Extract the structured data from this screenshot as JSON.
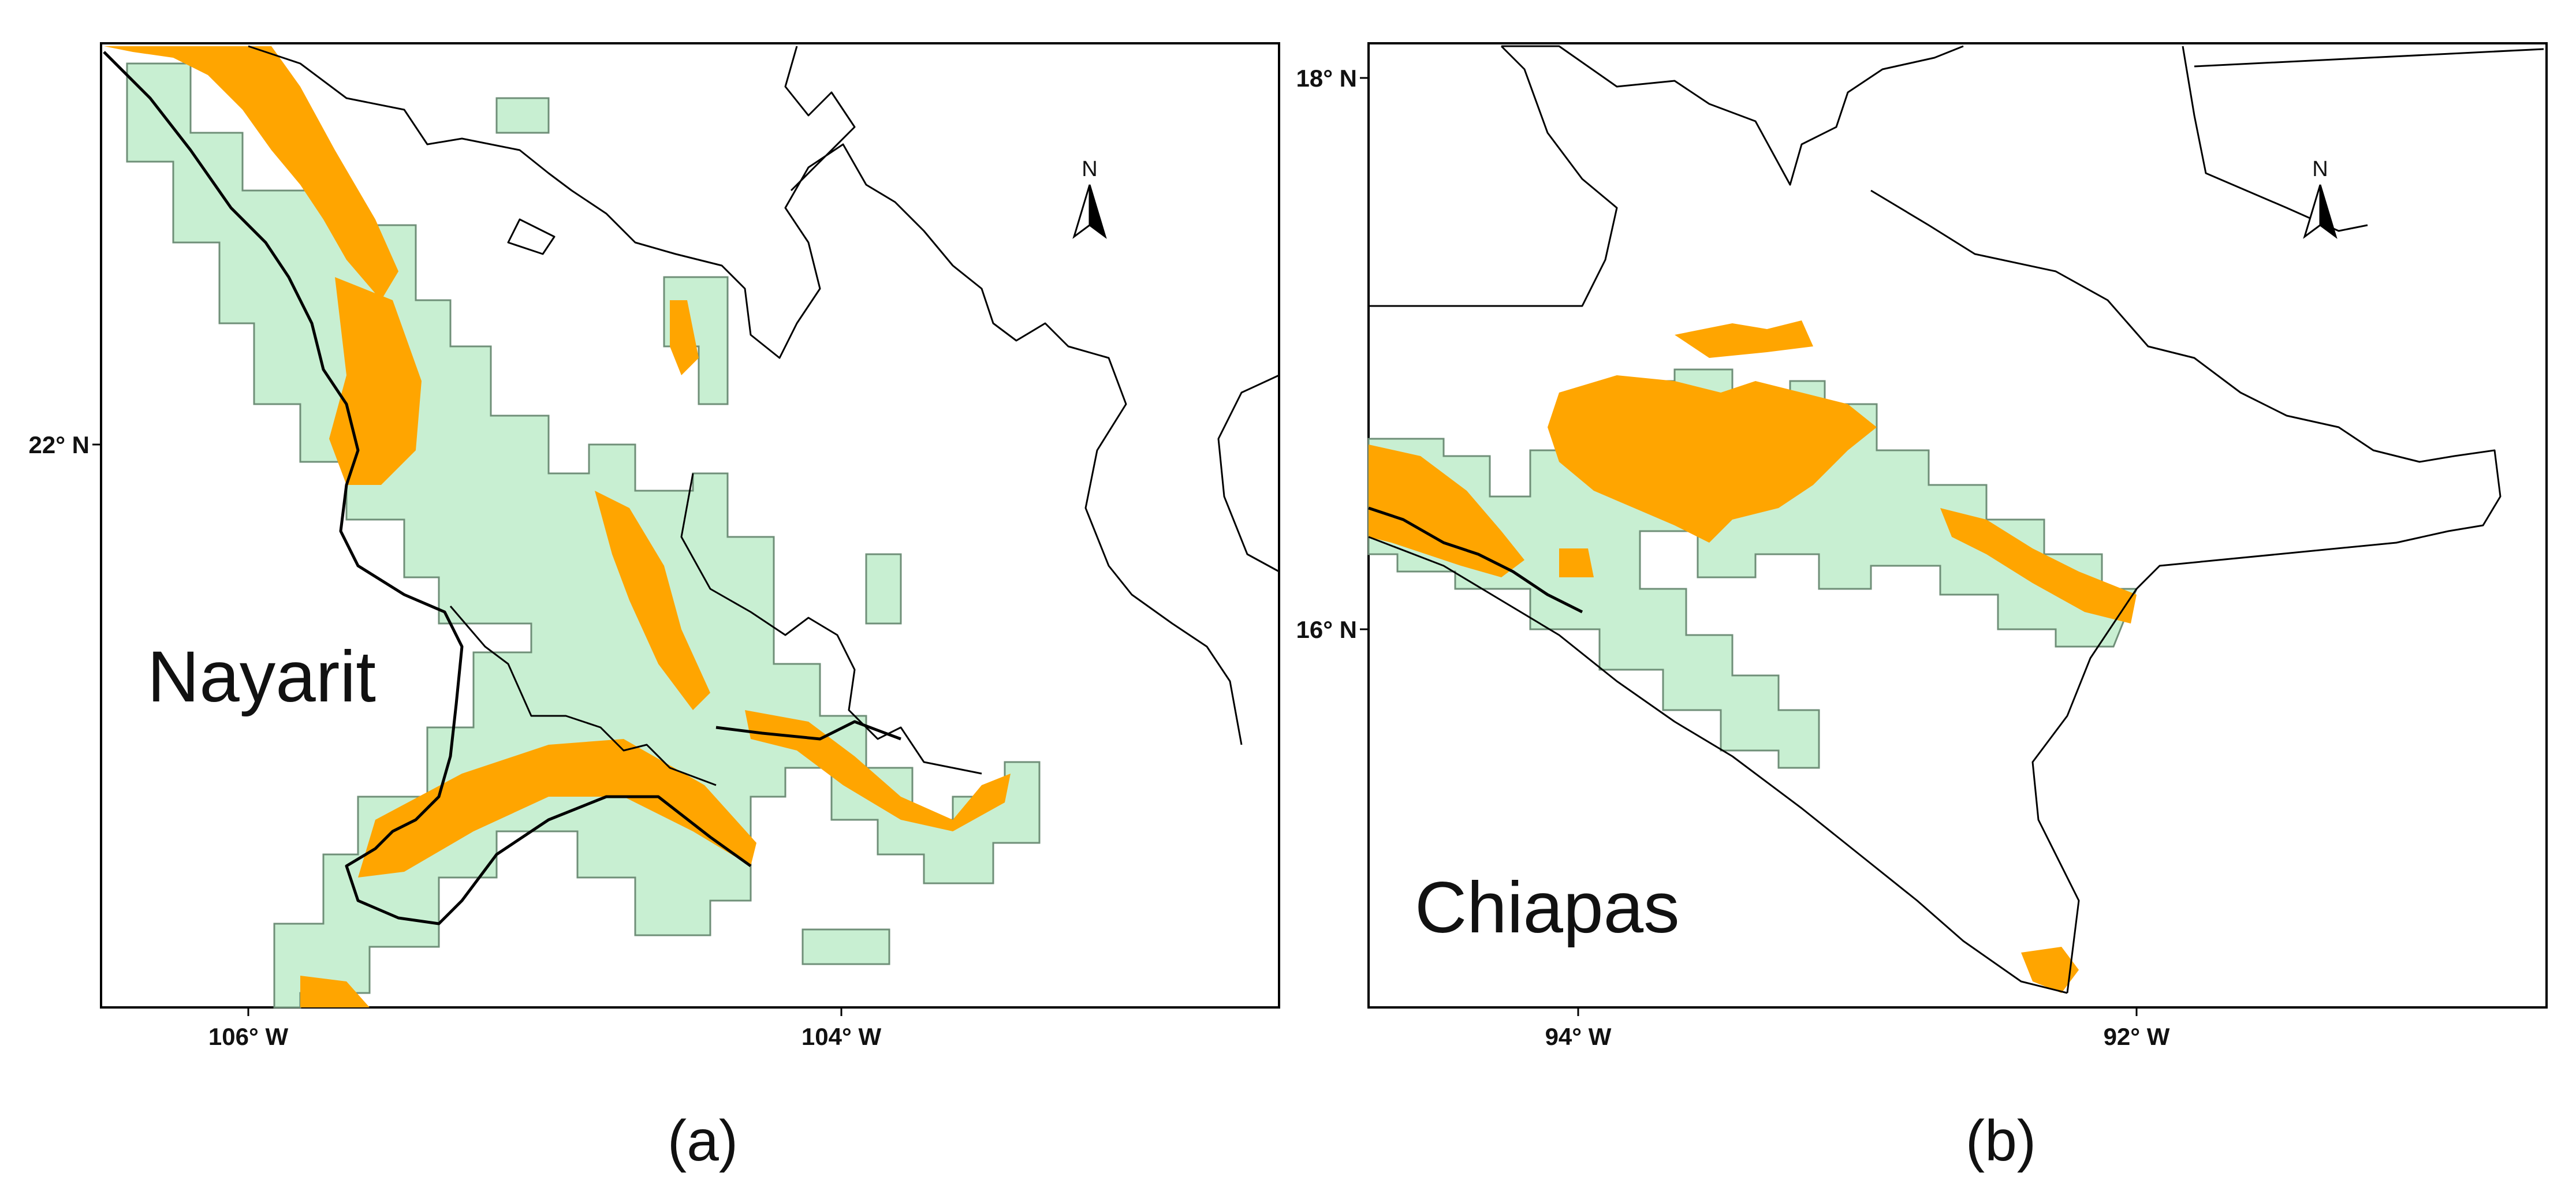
{
  "panels": [
    {
      "caption": "(a)",
      "region_label": "Nayarit",
      "north_label": "N",
      "x_ticks": [
        "106° W",
        "104° W"
      ],
      "y_ticks": [
        "22° N"
      ]
    },
    {
      "caption": "(b)",
      "region_label": "Chiapas",
      "north_label": "N",
      "x_ticks": [
        "94° W",
        "92° W"
      ],
      "y_ticks": [
        "18° N",
        "16° N"
      ]
    }
  ],
  "colors": {
    "suitable_area": "#ffa500",
    "sampled_region": "#c8efd2",
    "boundary": "#000000"
  }
}
